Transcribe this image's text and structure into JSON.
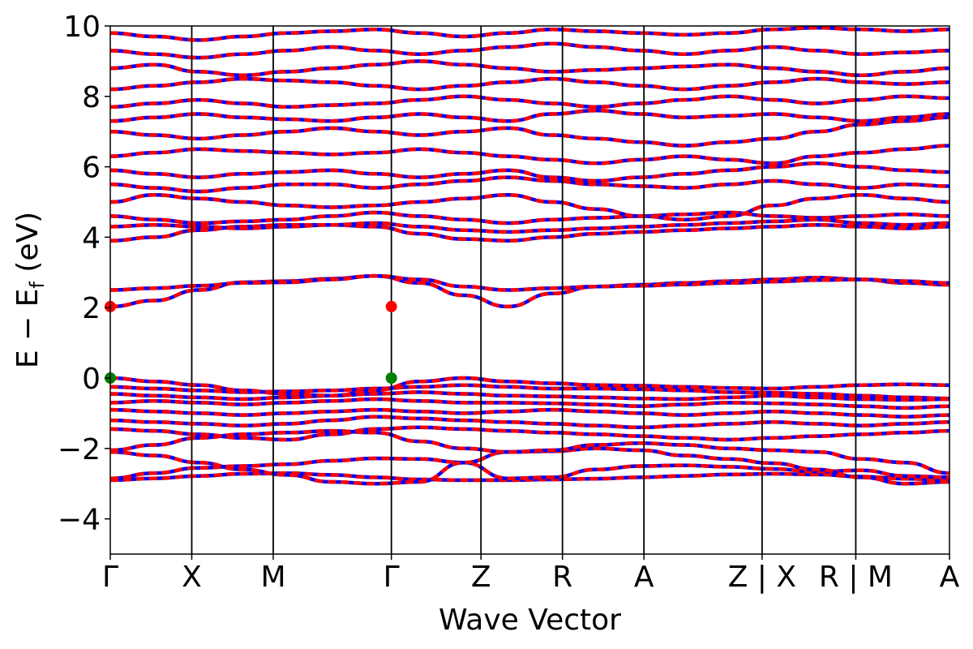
{
  "chart_data": {
    "type": "line",
    "title": "",
    "xlabel": "Wave Vector",
    "ylabel_main": "E − E",
    "ylabel_sub": "f",
    "ylabel_unit": " (eV)",
    "ylim": [
      -5,
      10
    ],
    "yticks": [
      -4,
      -2,
      0,
      2,
      4,
      6,
      8,
      10
    ],
    "ytick_labels": [
      "−4",
      "−2",
      "0",
      "2",
      "4",
      "6",
      "8",
      "10"
    ],
    "xlim": [
      0,
      10.3
    ],
    "kpoints": [
      {
        "label": "Γ",
        "x": 0.0
      },
      {
        "label": "X",
        "x": 1.0
      },
      {
        "label": "M",
        "x": 2.0
      },
      {
        "label": "Γ",
        "x": 3.45
      },
      {
        "label": "Z",
        "x": 4.55
      },
      {
        "label": "R",
        "x": 5.55
      },
      {
        "label": "A",
        "x": 6.55
      },
      {
        "label": "Z | X",
        "x": 8.0
      },
      {
        "label": "R | M",
        "x": 9.15
      },
      {
        "label": "A",
        "x": 10.3
      }
    ],
    "series_colors": {
      "spin_up": "#ff0000",
      "spin_down": "#0000ff"
    },
    "cbm": {
      "color": "#ff0000",
      "points": [
        {
          "x": 0.0,
          "y": 2.03
        },
        {
          "x": 3.45,
          "y": 2.03
        }
      ]
    },
    "vbm": {
      "color": "#008000",
      "points": [
        {
          "x": 0.0,
          "y": 0.0
        },
        {
          "x": 3.45,
          "y": 0.0
        }
      ]
    },
    "bands": [
      [
        -2.9,
        -2.85,
        -2.78,
        -2.72,
        -2.7,
        -2.75,
        -2.82,
        -2.88,
        -2.9,
        -2.9,
        -2.88,
        -2.86,
        -2.82,
        -2.78,
        -2.74,
        -2.72,
        -2.74,
        -2.8,
        -2.86,
        -2.9
      ],
      [
        -2.85,
        -2.7,
        -2.55,
        -2.5,
        -2.45,
        -2.35,
        -2.28,
        -2.3,
        -2.4,
        -2.85,
        -2.82,
        -2.6,
        -2.5,
        -2.48,
        -2.52,
        -2.58,
        -2.66,
        -2.62,
        -2.78,
        -2.82
      ],
      [
        -2.1,
        -2.2,
        -2.4,
        -2.6,
        -2.75,
        -2.95,
        -3.0,
        -2.95,
        -2.4,
        -2.1,
        -2.08,
        -2.0,
        -2.05,
        -2.2,
        -2.3,
        -2.42,
        -2.6,
        -2.82,
        -3.0,
        -2.95
      ],
      [
        -2.05,
        -1.9,
        -1.7,
        -1.6,
        -1.55,
        -1.5,
        -1.55,
        -1.8,
        -2.0,
        -2.1,
        -2.05,
        -1.9,
        -1.85,
        -1.9,
        -2.0,
        -2.05,
        -2.1,
        -2.3,
        -2.4,
        -2.7
      ],
      [
        -1.45,
        -1.5,
        -1.6,
        -1.7,
        -1.75,
        -1.6,
        -1.45,
        -1.4,
        -1.45,
        -1.5,
        -1.55,
        -1.6,
        -1.65,
        -1.7,
        -1.75,
        -1.7,
        -1.65,
        -1.6,
        -1.55,
        -1.5
      ],
      [
        -1.2,
        -1.25,
        -1.3,
        -1.35,
        -1.3,
        -1.2,
        -1.1,
        -1.15,
        -1.2,
        -1.25,
        -1.3,
        -1.35,
        -1.4,
        -1.35,
        -1.3,
        -1.25,
        -1.3,
        -1.35,
        -1.3,
        -1.25
      ],
      [
        -0.9,
        -0.95,
        -1.0,
        -1.05,
        -1.0,
        -0.95,
        -0.9,
        -0.95,
        -1.0,
        -0.95,
        -0.9,
        -0.95,
        -1.0,
        -1.05,
        -1.0,
        -0.95,
        -1.0,
        -1.05,
        -1.1,
        -1.05
      ],
      [
        -0.7,
        -0.65,
        -0.7,
        -0.75,
        -0.7,
        -0.65,
        -0.6,
        -0.65,
        -0.7,
        -0.7,
        -0.72,
        -0.75,
        -0.8,
        -0.75,
        -0.7,
        -0.72,
        -0.75,
        -0.8,
        -0.85,
        -0.8
      ],
      [
        -0.45,
        -0.5,
        -0.55,
        -0.6,
        -0.55,
        -0.5,
        -0.45,
        -0.4,
        -0.45,
        -0.5,
        -0.52,
        -0.55,
        -0.58,
        -0.6,
        -0.55,
        -0.5,
        -0.55,
        -0.6,
        -0.62,
        -0.6
      ],
      [
        -0.25,
        -0.3,
        -0.35,
        -0.4,
        -0.38,
        -0.35,
        -0.3,
        -0.25,
        -0.2,
        -0.25,
        -0.3,
        -0.3,
        -0.32,
        -0.35,
        -0.4,
        -0.42,
        -0.45,
        -0.5,
        -0.55,
        -0.58
      ],
      [
        0.0,
        -0.1,
        -0.2,
        -0.35,
        -0.45,
        -0.5,
        -0.35,
        -0.1,
        0.0,
        -0.1,
        -0.15,
        -0.2,
        -0.22,
        -0.25,
        -0.28,
        -0.3,
        -0.25,
        -0.2,
        -0.18,
        -0.2
      ],
      [
        2.03,
        2.2,
        2.5,
        2.72,
        2.75,
        2.82,
        2.9,
        2.7,
        2.35,
        2.03,
        2.4,
        2.6,
        2.65,
        2.7,
        2.75,
        2.8,
        2.85,
        2.8,
        2.7,
        2.65
      ],
      [
        2.5,
        2.55,
        2.62,
        2.7,
        2.72,
        2.8,
        2.9,
        2.8,
        2.6,
        2.5,
        2.55,
        2.6,
        2.62,
        2.66,
        2.7,
        2.74,
        2.78,
        2.8,
        2.75,
        2.7
      ],
      [
        3.9,
        4.0,
        4.2,
        4.3,
        4.35,
        4.35,
        4.3,
        4.1,
        3.95,
        3.9,
        4.0,
        4.1,
        4.15,
        4.2,
        4.25,
        4.3,
        4.35,
        4.3,
        4.25,
        4.3
      ],
      [
        4.3,
        4.35,
        4.3,
        4.25,
        4.3,
        4.35,
        4.4,
        4.3,
        4.2,
        4.15,
        4.2,
        4.25,
        4.3,
        4.35,
        4.4,
        4.45,
        4.5,
        4.4,
        4.35,
        4.4
      ],
      [
        4.6,
        4.5,
        4.4,
        4.45,
        4.5,
        4.6,
        4.7,
        4.6,
        4.5,
        4.4,
        4.5,
        4.55,
        4.6,
        4.65,
        4.7,
        4.6,
        4.55,
        4.6,
        4.65,
        4.6
      ],
      [
        5.0,
        5.2,
        5.1,
        5.0,
        4.9,
        4.85,
        4.9,
        5.0,
        5.1,
        5.2,
        5.0,
        4.8,
        4.6,
        4.5,
        4.6,
        4.9,
        5.1,
        5.2,
        5.1,
        5.0
      ],
      [
        5.5,
        5.4,
        5.3,
        5.4,
        5.5,
        5.5,
        5.4,
        5.5,
        5.6,
        5.7,
        5.6,
        5.5,
        5.45,
        5.4,
        5.5,
        5.6,
        5.5,
        5.4,
        5.5,
        5.45
      ],
      [
        5.9,
        5.8,
        5.7,
        5.8,
        5.85,
        5.9,
        5.8,
        5.7,
        5.8,
        5.9,
        5.7,
        5.6,
        5.7,
        5.8,
        5.9,
        6.0,
        6.1,
        6.0,
        5.9,
        5.85
      ],
      [
        6.3,
        6.4,
        6.5,
        6.45,
        6.4,
        6.35,
        6.4,
        6.5,
        6.4,
        6.3,
        6.2,
        6.1,
        6.2,
        6.3,
        6.2,
        6.1,
        6.3,
        6.4,
        6.5,
        6.6
      ],
      [
        7.0,
        6.9,
        6.8,
        6.9,
        7.0,
        7.1,
        7.0,
        6.9,
        7.0,
        7.1,
        6.9,
        6.8,
        6.7,
        6.6,
        6.7,
        6.8,
        7.0,
        7.2,
        7.3,
        7.4
      ],
      [
        7.3,
        7.4,
        7.5,
        7.4,
        7.35,
        7.3,
        7.4,
        7.5,
        7.4,
        7.3,
        7.5,
        7.6,
        7.5,
        7.4,
        7.45,
        7.5,
        7.4,
        7.3,
        7.4,
        7.5
      ],
      [
        7.7,
        7.8,
        7.9,
        7.8,
        7.7,
        7.75,
        7.8,
        7.9,
        8.0,
        7.9,
        7.8,
        7.7,
        7.8,
        7.9,
        8.0,
        7.9,
        7.8,
        7.9,
        8.0,
        7.95
      ],
      [
        8.2,
        8.3,
        8.4,
        8.5,
        8.45,
        8.4,
        8.3,
        8.2,
        8.3,
        8.4,
        8.5,
        8.4,
        8.3,
        8.2,
        8.3,
        8.4,
        8.5,
        8.4,
        8.35,
        8.4
      ],
      [
        8.8,
        8.9,
        8.7,
        8.6,
        8.7,
        8.8,
        8.9,
        9.0,
        8.9,
        8.8,
        8.7,
        8.75,
        8.8,
        8.85,
        8.9,
        8.8,
        8.7,
        8.6,
        8.7,
        8.8
      ],
      [
        9.3,
        9.2,
        9.1,
        9.2,
        9.3,
        9.4,
        9.3,
        9.2,
        9.3,
        9.4,
        9.5,
        9.4,
        9.3,
        9.2,
        9.3,
        9.4,
        9.3,
        9.2,
        9.25,
        9.3
      ],
      [
        9.8,
        9.7,
        9.6,
        9.7,
        9.8,
        9.85,
        9.9,
        9.8,
        9.7,
        9.8,
        9.9,
        9.85,
        9.8,
        9.75,
        9.8,
        9.9,
        9.95,
        9.9,
        9.85,
        9.9
      ]
    ]
  }
}
